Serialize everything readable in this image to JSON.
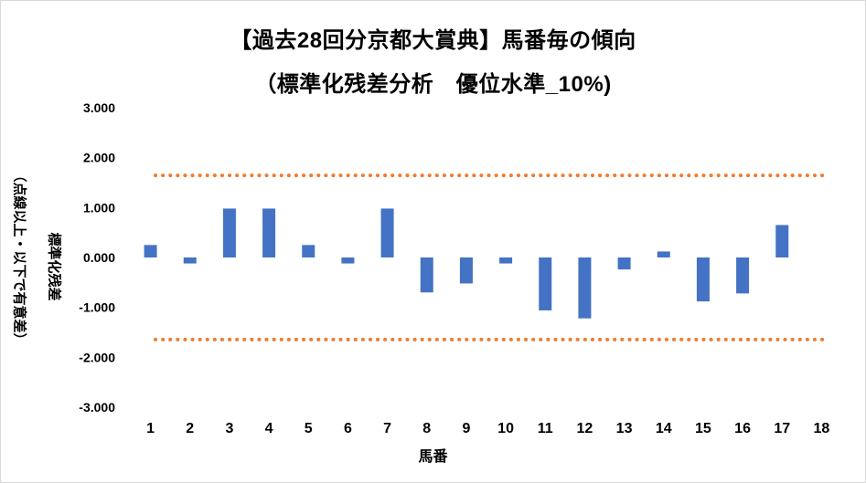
{
  "chart_data": {
    "type": "bar",
    "title": "【過去28回分京都大賞典】馬番毎の傾向",
    "subtitle": "（標準化残差分析　優位水準_10%)",
    "xlabel": "馬番",
    "ylabel": "標準化残差",
    "ylabel_note": "（点線以上・以下で有意差）",
    "categories": [
      "1",
      "2",
      "3",
      "4",
      "5",
      "6",
      "7",
      "8",
      "9",
      "10",
      "11",
      "12",
      "13",
      "14",
      "15",
      "16",
      "17",
      "18"
    ],
    "values": [
      0.25,
      -0.12,
      0.98,
      0.98,
      0.25,
      -0.12,
      0.98,
      -0.7,
      -0.52,
      -0.12,
      -1.06,
      -1.22,
      -0.24,
      0.12,
      -0.88,
      -0.72,
      0.65,
      null
    ],
    "yticks": [
      "3.000",
      "2.000",
      "1.000",
      "0.000",
      "-1.000",
      "-2.000",
      "-3.000"
    ],
    "ylim": [
      -3,
      3
    ],
    "thresholds": [
      1.645,
      -1.645
    ],
    "bar_color": "#4472c4",
    "threshold_color": "#ed7d31",
    "grid": false,
    "legend": "none"
  }
}
